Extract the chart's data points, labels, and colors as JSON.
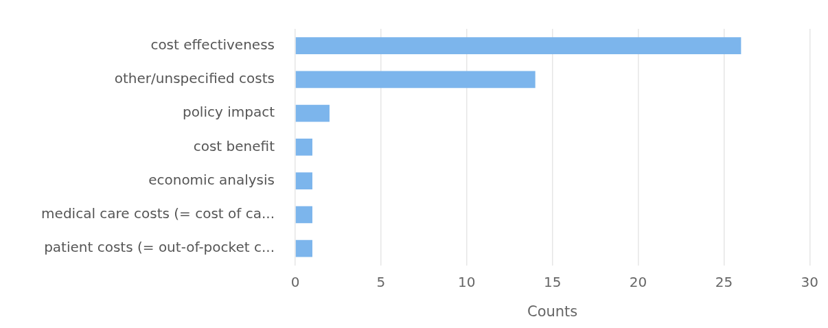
{
  "chart_data": {
    "type": "bar",
    "orientation": "horizontal",
    "xlabel": "Counts",
    "categories": [
      "cost effectiveness",
      "other/unspecified costs",
      "policy impact",
      "cost benefit",
      "economic analysis",
      "medical care costs (= cost of ca...",
      "patient costs (= out-of-pocket c..."
    ],
    "values": [
      26,
      14,
      2,
      1,
      1,
      1,
      1
    ],
    "color": "#7cb5ec",
    "xlim": [
      0,
      30
    ],
    "xticks": [
      0,
      5,
      10,
      15,
      20,
      25,
      30
    ],
    "grid": "x"
  }
}
